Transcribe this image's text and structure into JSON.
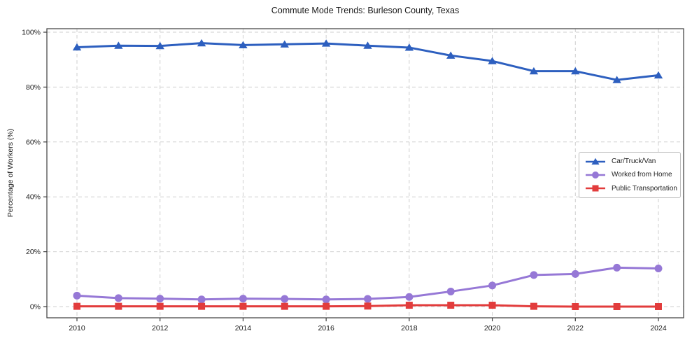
{
  "chart_data": {
    "type": "line",
    "title": "Commute Mode Trends: Burleson County, Texas",
    "xlabel": "",
    "ylabel": "Percentage of Workers (%)",
    "x": [
      2010,
      2011,
      2012,
      2013,
      2014,
      2015,
      2016,
      2017,
      2018,
      2019,
      2020,
      2021,
      2022,
      2023,
      2024
    ],
    "x_ticks": [
      {
        "value": 2010,
        "label": "2010"
      },
      {
        "value": 2012,
        "label": "2012"
      },
      {
        "value": 2014,
        "label": "2014"
      },
      {
        "value": 2016,
        "label": "2016"
      },
      {
        "value": 2018,
        "label": "2018"
      },
      {
        "value": 2020,
        "label": "2020"
      },
      {
        "value": 2022,
        "label": "2022"
      },
      {
        "value": 2024,
        "label": "2024"
      }
    ],
    "y_ticks": [
      {
        "value": 0,
        "label": "0%"
      },
      {
        "value": 20,
        "label": "20%"
      },
      {
        "value": 40,
        "label": "40%"
      },
      {
        "value": 60,
        "label": "60%"
      },
      {
        "value": 80,
        "label": "80%"
      },
      {
        "value": 100,
        "label": "100%"
      }
    ],
    "ylim": [
      0,
      100
    ],
    "grid": "dashed-both-axes",
    "legend_position": "center-right",
    "colors": {
      "grid": "#cfcfcf",
      "spine": "#3c3c3c",
      "tick_label": "#1a1a1a"
    },
    "series": [
      {
        "name": "Car/Truck/Van",
        "color": "#2d5fbf",
        "marker": "triangle",
        "values": [
          94.5,
          95.1,
          95.0,
          96.0,
          95.3,
          95.6,
          95.9,
          95.1,
          94.4,
          91.5,
          89.5,
          85.8,
          85.8,
          82.6,
          84.3
        ]
      },
      {
        "name": "Worked from Home",
        "color": "#9678d6",
        "marker": "circle",
        "values": [
          4.0,
          3.1,
          2.9,
          2.6,
          2.9,
          2.8,
          2.6,
          2.8,
          3.5,
          5.5,
          7.7,
          11.5,
          11.9,
          14.2,
          13.9
        ]
      },
      {
        "name": "Public Transportation",
        "color": "#e23c3c",
        "marker": "square",
        "values": [
          0.1,
          0.1,
          0.1,
          0.1,
          0.1,
          0.1,
          0.1,
          0.2,
          0.5,
          0.5,
          0.5,
          0.1,
          0.0,
          0.0,
          0.0
        ]
      }
    ]
  }
}
